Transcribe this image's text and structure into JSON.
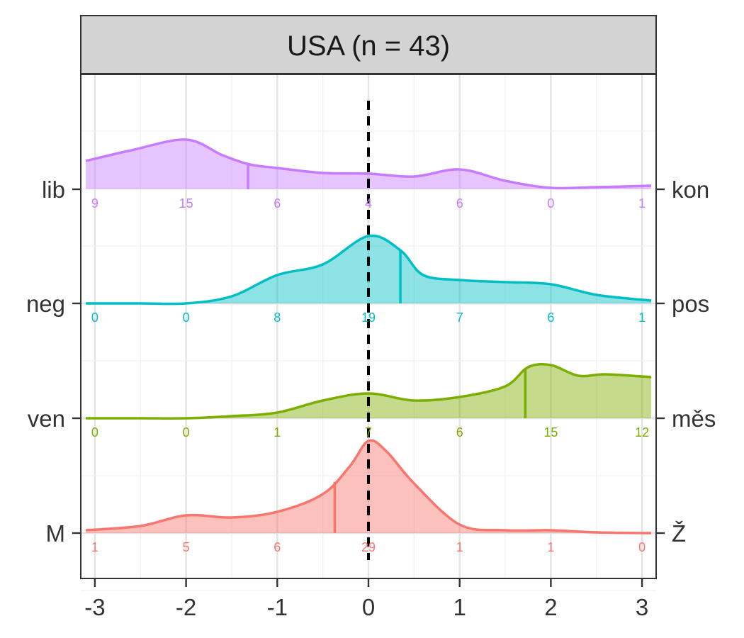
{
  "chart_data": {
    "type": "ridgeline",
    "title": "USA (n = 43)",
    "xlim": [
      -3.1,
      3.1
    ],
    "x_ticks": [
      -3,
      -2,
      -1,
      0,
      1,
      2,
      3
    ],
    "x_tick_labels": [
      "-3",
      "-2",
      "-1",
      "0",
      "1",
      "2",
      "3"
    ],
    "reference_line_x": 0,
    "grid": true,
    "legend": "none",
    "series": [
      {
        "left_label": "M",
        "right_label": "Ž",
        "color": "#F8766D",
        "mean": -0.37,
        "count_x": [
          -3,
          -2,
          -1,
          0,
          1,
          2,
          3
        ],
        "counts": [
          "1",
          "5",
          "6",
          "29",
          "1",
          "1",
          "0"
        ],
        "density_x": [
          -3.1,
          -2.5,
          -2.0,
          -1.5,
          -1.0,
          -0.5,
          -0.2,
          0.0,
          0.2,
          0.5,
          1.0,
          1.5,
          2.0,
          2.5,
          3.1
        ],
        "density_y": [
          0.04,
          0.1,
          0.25,
          0.22,
          0.3,
          0.55,
          0.95,
          1.3,
          1.15,
          0.7,
          0.12,
          0.04,
          0.04,
          0.01,
          0.0
        ]
      },
      {
        "left_label": "ven",
        "right_label": "měs",
        "color": "#7CAE00",
        "mean": 1.72,
        "count_x": [
          -3,
          -2,
          -1,
          0,
          1,
          2,
          3
        ],
        "counts": [
          "0",
          "0",
          "1",
          "7",
          "6",
          "15",
          "12"
        ],
        "density_x": [
          -3.1,
          -2.5,
          -2.0,
          -1.5,
          -1.0,
          -0.5,
          0.0,
          0.5,
          1.0,
          1.5,
          1.75,
          2.0,
          2.3,
          2.6,
          3.1
        ],
        "density_y": [
          0.0,
          0.0,
          0.0,
          0.03,
          0.08,
          0.25,
          0.35,
          0.25,
          0.3,
          0.45,
          0.72,
          0.75,
          0.6,
          0.62,
          0.58
        ]
      },
      {
        "left_label": "neg",
        "right_label": "pos",
        "color": "#00BFC4",
        "mean": 0.35,
        "count_x": [
          -3,
          -2,
          -1,
          0,
          1,
          2,
          3
        ],
        "counts": [
          "0",
          "0",
          "8",
          "19",
          "7",
          "6",
          "1"
        ],
        "density_x": [
          -3.1,
          -2.5,
          -2.0,
          -1.5,
          -1.0,
          -0.5,
          0.0,
          0.35,
          0.6,
          1.0,
          1.5,
          2.0,
          2.5,
          3.1
        ],
        "density_y": [
          0.0,
          0.0,
          0.0,
          0.1,
          0.4,
          0.55,
          0.95,
          0.75,
          0.4,
          0.33,
          0.3,
          0.27,
          0.12,
          0.04
        ]
      },
      {
        "left_label": "lib",
        "right_label": "kon",
        "color": "#C77CFF",
        "mean": -1.32,
        "count_x": [
          -3,
          -2,
          -1,
          0,
          1,
          2,
          3
        ],
        "counts": [
          "9",
          "15",
          "6",
          "4",
          "6",
          "0",
          "1"
        ],
        "density_x": [
          -3.1,
          -2.6,
          -2.0,
          -1.6,
          -1.3,
          -1.0,
          -0.5,
          0.0,
          0.5,
          1.0,
          1.5,
          2.0,
          2.5,
          3.1
        ],
        "density_y": [
          0.4,
          0.55,
          0.7,
          0.48,
          0.35,
          0.3,
          0.23,
          0.22,
          0.18,
          0.28,
          0.12,
          0.02,
          0.03,
          0.05
        ]
      }
    ]
  }
}
